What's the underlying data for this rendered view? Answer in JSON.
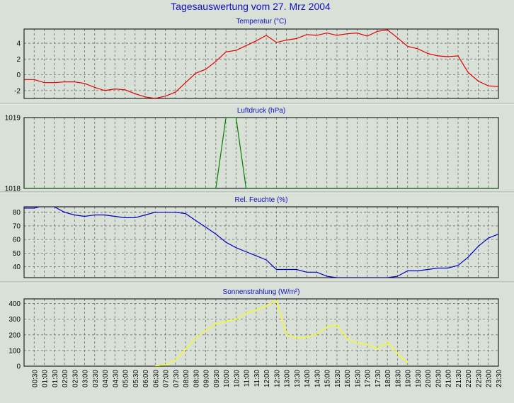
{
  "page_title": "Tagesauswertung vom 27. Mrz 2004",
  "colors": {
    "background": "#d8e0d8",
    "plot_background": "#d8e0d8",
    "title": "#1010c0",
    "grid": "#6a6a6a"
  },
  "x_axis": {
    "tick_labels": [
      "00:30",
      "01:00",
      "01:30",
      "02:00",
      "02:30",
      "03:00",
      "03:30",
      "04:00",
      "04:30",
      "05:00",
      "05:30",
      "06:00",
      "06:30",
      "07:00",
      "07:30",
      "08:00",
      "08:30",
      "09:00",
      "09:30",
      "10:00",
      "10:30",
      "11:00",
      "11:30",
      "12:00",
      "12:30",
      "13:00",
      "13:30",
      "14:00",
      "14:30",
      "15:00",
      "15:30",
      "16:00",
      "16:30",
      "17:00",
      "17:30",
      "18:00",
      "18:30",
      "19:00",
      "19:30",
      "20:00",
      "20:30",
      "21:00",
      "21:30",
      "22:00",
      "22:30",
      "23:00",
      "23:30"
    ]
  },
  "chart_data": [
    {
      "type": "line",
      "title": "Temperatur (°C)",
      "ylim": [
        -3,
        5.8
      ],
      "yticks": [
        -2,
        0,
        2,
        4
      ],
      "grid": true,
      "series": [
        {
          "color": "#e00000",
          "x": [
            0.0,
            0.5,
            1.0,
            1.5,
            2.0,
            2.5,
            3.0,
            3.5,
            4.0,
            4.5,
            5.0,
            5.5,
            6.0,
            6.5,
            7.0,
            7.5,
            8.0,
            8.5,
            9.0,
            9.5,
            10.0,
            10.5,
            11.0,
            11.5,
            12.0,
            12.5,
            13.0,
            13.5,
            14.0,
            14.5,
            15.0,
            15.5,
            16.0,
            16.5,
            17.0,
            17.5,
            18.0,
            18.5,
            19.0,
            19.5,
            20.0,
            20.5,
            21.0,
            21.5,
            22.0,
            22.5,
            23.0,
            23.5
          ],
          "values": [
            -0.6,
            -0.6,
            -1.0,
            -1.0,
            -0.9,
            -0.9,
            -1.1,
            -1.6,
            -2.0,
            -1.8,
            -1.9,
            -2.4,
            -2.8,
            -3.0,
            -2.7,
            -2.2,
            -1.0,
            0.2,
            0.7,
            1.7,
            2.9,
            3.1,
            3.7,
            4.3,
            5.0,
            4.1,
            4.4,
            4.6,
            5.1,
            5.0,
            5.3,
            5.0,
            5.2,
            5.3,
            4.9,
            5.5,
            5.7,
            4.7,
            3.6,
            3.3,
            2.7,
            2.4,
            2.3,
            2.4,
            0.3,
            -0.8,
            -1.4,
            -1.5
          ]
        }
      ]
    },
    {
      "type": "line",
      "title": "Luftdruck (hPa)",
      "ylim": [
        1018,
        1019
      ],
      "yticks": [
        1018,
        1019
      ],
      "grid": true,
      "series": [
        {
          "color": "#008000",
          "x": [
            0.0,
            0.5,
            1.0,
            1.5,
            2.0,
            2.5,
            3.0,
            3.5,
            4.0,
            4.5,
            5.0,
            5.5,
            6.0,
            6.5,
            7.0,
            7.5,
            8.0,
            8.5,
            9.0,
            9.5,
            10.0,
            10.5,
            11.0,
            11.5,
            12.0,
            12.5,
            13.0,
            13.5,
            14.0,
            14.5,
            15.0,
            15.5,
            16.0,
            16.5,
            17.0,
            17.5,
            18.0,
            18.5,
            19.0,
            19.5,
            20.0,
            20.5,
            21.0,
            21.5,
            22.0,
            22.5,
            23.0,
            23.5
          ],
          "values": [
            1018,
            1018,
            1018,
            1018,
            1018,
            1018,
            1018,
            1018,
            1018,
            1018,
            1018,
            1018,
            1018,
            1018,
            1018,
            1018,
            1018,
            1018,
            1018,
            1018,
            1019,
            1019,
            1018,
            1018,
            1018,
            1018,
            1018,
            1018,
            1018,
            1018,
            1018,
            1018,
            1018,
            1018,
            1018,
            1018,
            1018,
            1018,
            1018,
            1018,
            1018,
            1018,
            1018,
            1018,
            1018,
            1018,
            1018,
            1018
          ]
        }
      ]
    },
    {
      "type": "line",
      "title": "Rel. Feuchte (%)",
      "ylim": [
        32,
        84
      ],
      "yticks": [
        40,
        50,
        60,
        70,
        80
      ],
      "grid": true,
      "series": [
        {
          "color": "#0000c0",
          "x": [
            0.0,
            0.5,
            1.0,
            1.5,
            2.0,
            2.5,
            3.0,
            3.5,
            4.0,
            4.5,
            5.0,
            5.5,
            6.0,
            6.5,
            7.0,
            7.5,
            8.0,
            8.5,
            9.0,
            9.5,
            10.0,
            10.5,
            11.0,
            11.5,
            12.0,
            12.5,
            13.0,
            13.5,
            14.0,
            14.5,
            15.0,
            15.5,
            16.0,
            16.5,
            17.0,
            17.5,
            18.0,
            18.5,
            19.0,
            19.5,
            20.0,
            20.5,
            21.0,
            21.5,
            22.0,
            22.5,
            23.0,
            23.5
          ],
          "values": [
            83,
            83,
            85,
            84,
            80,
            78,
            77,
            78,
            78,
            77,
            76,
            76,
            78,
            80,
            80,
            80,
            79,
            74,
            69,
            64,
            58,
            54,
            51,
            48,
            45,
            38,
            38,
            38,
            36,
            36,
            33,
            32,
            32,
            32,
            32,
            32,
            32,
            33,
            37,
            37,
            38,
            39,
            39,
            41,
            47,
            55,
            61,
            64
          ]
        }
      ]
    },
    {
      "type": "line",
      "title": "Sonnenstrahlung (W/m²)",
      "ylim": [
        0,
        430
      ],
      "yticks": [
        0,
        100,
        200,
        300,
        400
      ],
      "grid": true,
      "series": [
        {
          "color": "#ffff00",
          "x": [
            6.5,
            7.0,
            7.5,
            8.0,
            8.5,
            9.0,
            9.5,
            10.0,
            10.5,
            11.0,
            11.5,
            12.0,
            12.5,
            13.0,
            13.5,
            14.0,
            14.5,
            15.0,
            15.5,
            16.0,
            16.5,
            17.0,
            17.5,
            18.0,
            18.5,
            19.0
          ],
          "values": [
            0,
            10,
            40,
            110,
            180,
            230,
            270,
            285,
            300,
            340,
            360,
            385,
            420,
            200,
            180,
            185,
            205,
            250,
            265,
            175,
            150,
            140,
            110,
            155,
            80,
            20
          ]
        }
      ]
    }
  ]
}
